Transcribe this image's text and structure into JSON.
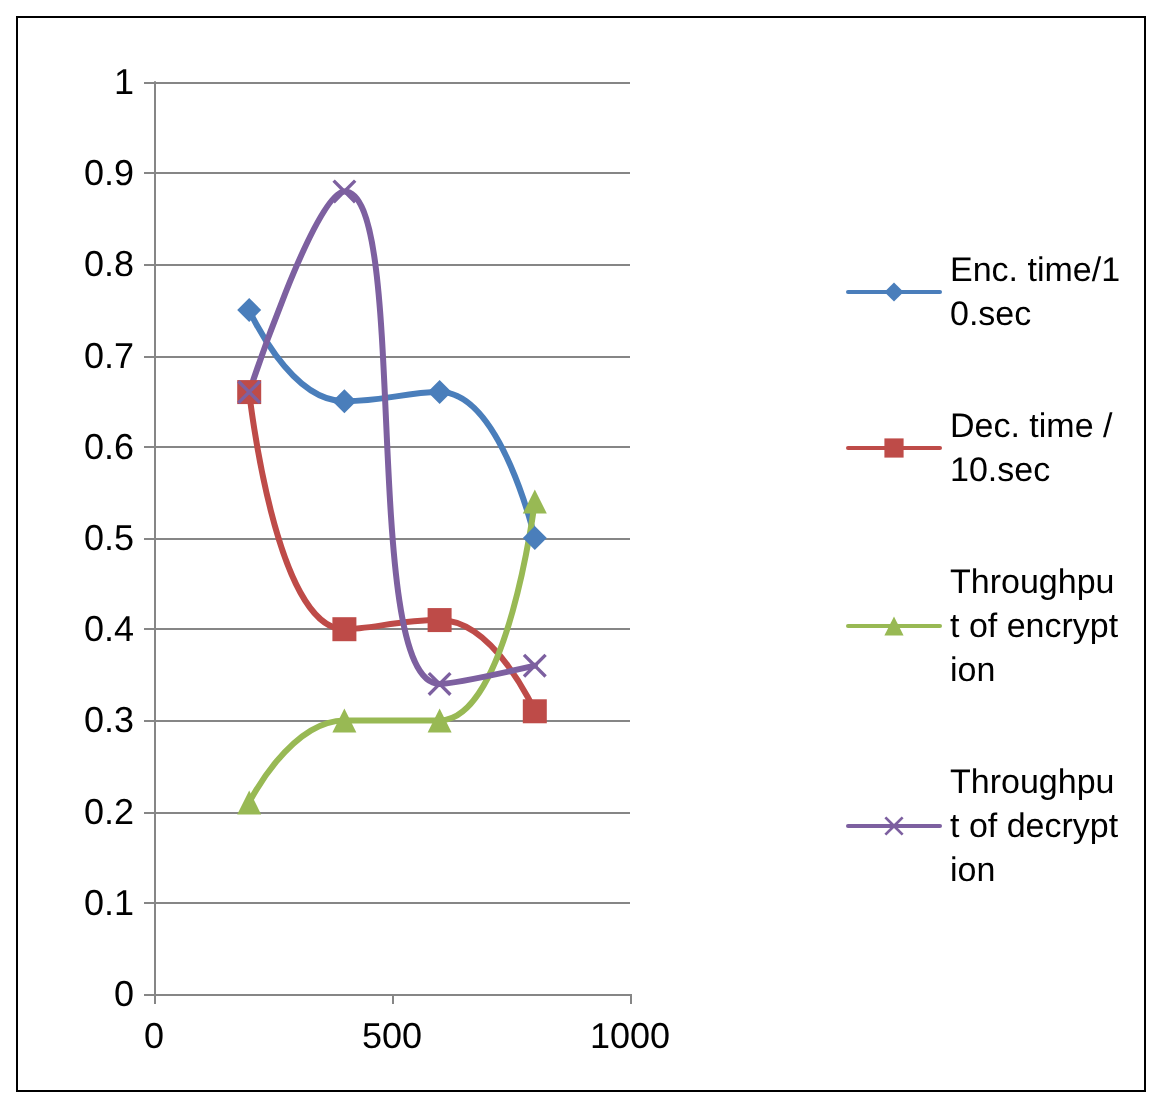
{
  "chart_data": {
    "type": "line",
    "x": [
      200,
      400,
      600,
      800
    ],
    "series": [
      {
        "name": "Enc. time/10.sec",
        "color": "#4a7ebb",
        "marker": "diamond",
        "values": [
          0.75,
          0.65,
          0.66,
          0.5
        ]
      },
      {
        "name": "Dec. time /10.sec",
        "color": "#be4b48",
        "marker": "square",
        "values": [
          0.66,
          0.4,
          0.41,
          0.31
        ]
      },
      {
        "name": "Throughput of encryption",
        "color": "#98b954",
        "marker": "triangle",
        "values": [
          0.21,
          0.3,
          0.3,
          0.54
        ]
      },
      {
        "name": "Throughput of decryption",
        "color": "#7d60a0",
        "marker": "cross",
        "values": [
          0.66,
          0.88,
          0.34,
          0.36
        ]
      }
    ],
    "xlim": [
      0,
      1000
    ],
    "xticks": [
      0,
      500,
      1000
    ],
    "ylim": [
      0,
      1
    ],
    "yticks": [
      0,
      0.1,
      0.2,
      0.3,
      0.4,
      0.5,
      0.6,
      0.7,
      0.8,
      0.9,
      1
    ],
    "grid": "y",
    "legend": "right",
    "line_style": "solid"
  }
}
